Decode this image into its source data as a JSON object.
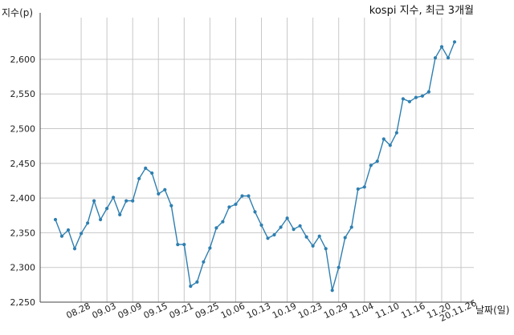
{
  "chart_data": {
    "type": "line",
    "title": "kospi 지수, 최근 3개월",
    "ylabel": "지수(p)",
    "xlabel": "날짜(일)",
    "ylim": [
      2250,
      2660
    ],
    "yticks": [
      2250,
      2300,
      2350,
      2400,
      2450,
      2500,
      2550,
      2600
    ],
    "ytick_labels": [
      "2,250",
      "2,300",
      "2,350",
      "2,400",
      "2,450",
      "2,500",
      "2,550",
      "2,600"
    ],
    "xtick_labels": [
      "08.28",
      "09.03",
      "09.09",
      "09.15",
      "09.21",
      "09.25",
      "10.06",
      "10.13",
      "10.19",
      "10.23",
      "10.29",
      "11.04",
      "11.10",
      "11.16",
      "11.20",
      "20.11.26"
    ],
    "xtick_index": [
      4,
      8,
      12,
      16,
      20,
      24,
      28,
      32,
      36,
      40,
      44,
      48,
      52,
      56,
      60,
      63
    ],
    "grid": true,
    "legend": "none",
    "color": "#2e7fb0",
    "series": [
      {
        "values": [
          2369,
          2345,
          2354,
          2327,
          2349,
          2364,
          2396,
          2369,
          2385,
          2401,
          2376,
          2396,
          2396,
          2428,
          2443,
          2436,
          2406,
          2412,
          2389,
          2333,
          2333,
          2273,
          2279,
          2308,
          2328,
          2357,
          2366,
          2387,
          2391,
          2403,
          2403,
          2380,
          2361,
          2342,
          2347,
          2358,
          2371,
          2355,
          2360,
          2344,
          2331,
          2345,
          2327,
          2267,
          2300,
          2343,
          2358,
          2413,
          2416,
          2447,
          2453,
          2485,
          2476,
          2494,
          2543,
          2539,
          2545,
          2547,
          2553,
          2602,
          2618,
          2602,
          2625
        ]
      }
    ]
  }
}
